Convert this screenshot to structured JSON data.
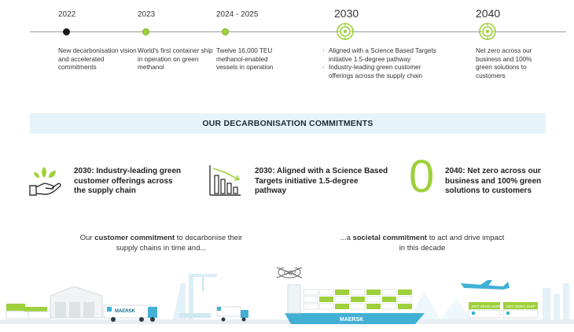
{
  "timeline": {
    "y2022": {
      "year": "2022",
      "text": "New decarbonisation vision and accelerated commitments"
    },
    "y2023": {
      "year": "2023",
      "text": "World's first container ship in operation on green methanol"
    },
    "y2024": {
      "year": "2024 - 2025",
      "text": "Twelve 16,000 TEU methanol-enabled vessels in operation"
    },
    "y2030": {
      "year": "2030",
      "bullets": [
        "Aligned with a Science Based Targets initiative 1.5-degree pathway",
        "Industry-leading green customer offerings across the supply chain"
      ]
    },
    "y2040": {
      "year": "2040",
      "text": "Net zero across our business and 100% green solutions to customers"
    }
  },
  "banner": {
    "title": "OUR DECARBONISATION COMMITMENTS"
  },
  "commitments": [
    {
      "icon": "hand-with-leaves-icon",
      "text": "2030: Industry-leading green customer offerings across the supply chain"
    },
    {
      "icon": "declining-bar-chart-icon",
      "text": "2030: Aligned with a Science Based Targets initiative 1.5-degree pathway"
    },
    {
      "icon": "zero-icon",
      "glyph": "0",
      "text": "2040: Net zero across our business and 100% green solutions to customers"
    }
  ],
  "bottom": {
    "left_pre": "Our ",
    "left_bold": "customer commitment",
    "left_post": " to decarbonise their supply chains in time and...",
    "right_pre": "...a ",
    "right_bold": "societal commitment",
    "right_post": " to act and drive impact in this decade"
  },
  "scene": {
    "brand": "MAERSK",
    "co2_label": "CO2",
    "container_label": "NET ZERO SHIP",
    "colors": {
      "accent_green": "#9ed03c",
      "maersk_blue": "#42b0d5",
      "light_blue": "#d9eef7"
    }
  }
}
